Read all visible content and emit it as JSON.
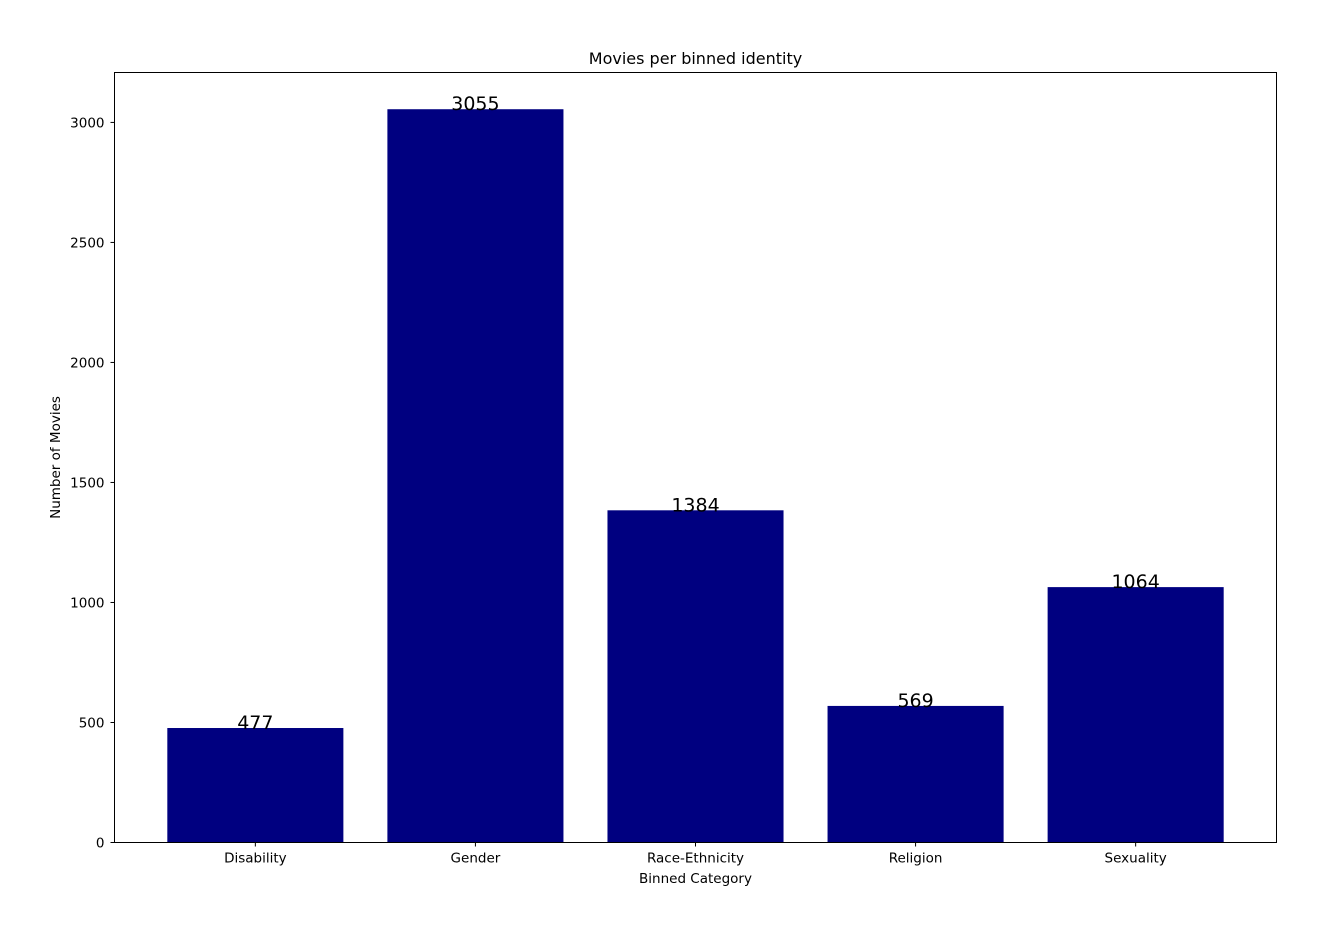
{
  "chart_data": {
    "type": "bar",
    "title": "Movies per binned identity",
    "xlabel": "Binned Category",
    "ylabel": "Number of Movies",
    "categories": [
      "Disability",
      "Gender",
      "Race-Ethnicity",
      "Religion",
      "Sexuality"
    ],
    "values": [
      477,
      3055,
      1384,
      569,
      1064
    ],
    "data_labels": [
      "477",
      "3055",
      "1384",
      "569",
      "1064"
    ],
    "ylim": [
      0,
      3208
    ],
    "yticks": [
      0,
      500,
      1000,
      1500,
      2000,
      2500,
      3000
    ],
    "ytick_labels": [
      "0",
      "500",
      "1000",
      "1500",
      "2000",
      "2500",
      "3000"
    ],
    "bar_color": "#000080",
    "grid": false,
    "legend": "none"
  }
}
